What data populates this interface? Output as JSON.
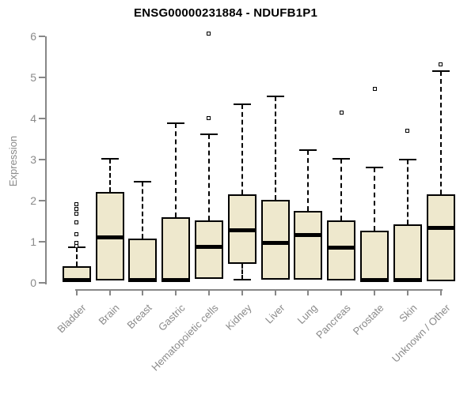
{
  "chart_data": {
    "type": "boxplot",
    "title": "ENSG00000231884 - NDUFB1P1",
    "ylabel": "Expression",
    "xlabel": "",
    "ylim": [
      0,
      6
    ],
    "yticks": [
      0,
      1,
      2,
      3,
      4,
      5,
      6
    ],
    "grid": false,
    "legend": null,
    "categories": [
      "Bladder",
      "Brain",
      "Breast",
      "Gastric",
      "Hematopoietic cells",
      "Kidney",
      "Liver",
      "Lung",
      "Pancreas",
      "Prostate",
      "Skin",
      "Unknown / Other"
    ],
    "series": [
      {
        "name": "Bladder",
        "q1": 0.02,
        "median": 0.06,
        "q3": 0.4,
        "whisker_low": null,
        "whisker_high": 0.86,
        "outliers": [
          0.9,
          0.98,
          1.18,
          1.47,
          1.68,
          1.8,
          1.92
        ]
      },
      {
        "name": "Brain",
        "q1": 0.05,
        "median": 1.1,
        "q3": 2.22,
        "whisker_low": null,
        "whisker_high": 3.02,
        "outliers": []
      },
      {
        "name": "Breast",
        "q1": 0.02,
        "median": 0.06,
        "q3": 1.08,
        "whisker_low": null,
        "whisker_high": 2.47,
        "outliers": []
      },
      {
        "name": "Gastric",
        "q1": 0.02,
        "median": 0.06,
        "q3": 1.6,
        "whisker_low": null,
        "whisker_high": 3.9,
        "outliers": []
      },
      {
        "name": "Hematopoietic cells",
        "q1": 0.1,
        "median": 0.87,
        "q3": 1.52,
        "whisker_low": null,
        "whisker_high": 3.63,
        "outliers": [
          4.02,
          6.07
        ]
      },
      {
        "name": "Kidney",
        "q1": 0.47,
        "median": 1.28,
        "q3": 2.16,
        "whisker_low": 0.08,
        "whisker_high": 4.35,
        "outliers": []
      },
      {
        "name": "Liver",
        "q1": 0.07,
        "median": 0.98,
        "q3": 2.02,
        "whisker_low": null,
        "whisker_high": 4.55,
        "outliers": []
      },
      {
        "name": "Lung",
        "q1": 0.08,
        "median": 1.16,
        "q3": 1.76,
        "whisker_low": null,
        "whisker_high": 3.23,
        "outliers": []
      },
      {
        "name": "Pancreas",
        "q1": 0.05,
        "median": 0.85,
        "q3": 1.53,
        "whisker_low": null,
        "whisker_high": 3.02,
        "outliers": [
          4.15
        ]
      },
      {
        "name": "Prostate",
        "q1": 0.02,
        "median": 0.06,
        "q3": 1.27,
        "whisker_low": null,
        "whisker_high": 2.82,
        "outliers": [
          4.72
        ]
      },
      {
        "name": "Skin",
        "q1": 0.02,
        "median": 0.06,
        "q3": 1.43,
        "whisker_low": null,
        "whisker_high": 3.0,
        "outliers": [
          3.7
        ]
      },
      {
        "name": "Unknown / Other",
        "q1": 0.04,
        "median": 1.33,
        "q3": 2.16,
        "whisker_low": null,
        "whisker_high": 5.17,
        "outliers": [
          5.33
        ]
      }
    ],
    "colors": {
      "box_fill": "#EEE8CD",
      "box_border": "#000000",
      "median": "#000000",
      "axis": "#878787",
      "tick_text": "#8A8A8A",
      "title_text": "#000000",
      "background": "#FFFFFF"
    }
  }
}
